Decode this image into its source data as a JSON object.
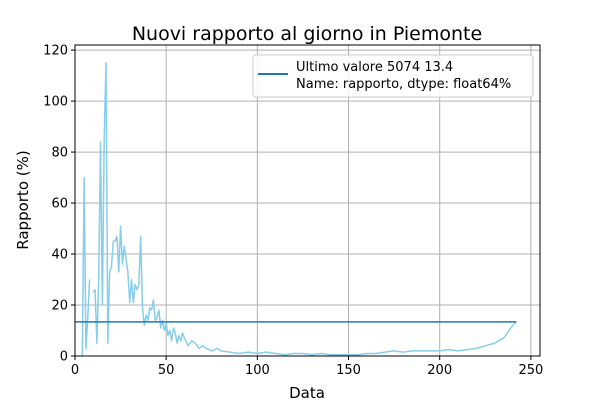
{
  "chart_data": {
    "type": "line",
    "title": "Nuovi rapporto al giorno in Piemonte",
    "xlabel": "Data",
    "ylabel": "Rapporto (%)",
    "xlim": [
      0,
      255
    ],
    "ylim": [
      0,
      122
    ],
    "xticks": [
      0,
      50,
      100,
      150,
      200,
      250
    ],
    "yticks": [
      0,
      20,
      40,
      60,
      80,
      100,
      120
    ],
    "grid": true,
    "legend_position": "top-right",
    "legend": {
      "line1": "Ultimo valore 5074    13.4",
      "line2": "Name: rapporto, dtype: float64%"
    },
    "series": [
      {
        "role": "data",
        "color": "#87ceeb",
        "x": [
          0,
          1,
          2,
          3,
          4,
          5,
          6,
          7,
          8,
          9,
          10,
          11,
          12,
          13,
          14,
          15,
          16,
          17,
          18,
          19,
          20,
          21,
          22,
          23,
          24,
          25,
          26,
          27,
          28,
          29,
          30,
          31,
          32,
          33,
          34,
          35,
          36,
          37,
          38,
          39,
          40,
          41,
          42,
          43,
          44,
          45,
          46,
          47,
          48,
          49,
          50,
          51,
          52,
          53,
          54,
          55,
          56,
          57,
          58,
          59,
          60,
          62,
          64,
          66,
          68,
          70,
          72,
          75,
          78,
          80,
          85,
          90,
          95,
          100,
          105,
          110,
          115,
          120,
          125,
          130,
          135,
          140,
          145,
          150,
          155,
          160,
          165,
          170,
          175,
          180,
          185,
          190,
          195,
          200,
          205,
          210,
          215,
          220,
          225,
          230,
          235,
          238,
          240,
          242
        ],
        "y": [
          null,
          null,
          null,
          null,
          0,
          70,
          3,
          15,
          30,
          null,
          25,
          26,
          5,
          30,
          84,
          20,
          85,
          115,
          5,
          33,
          35,
          45,
          45,
          47,
          33,
          51,
          36,
          43,
          38,
          33,
          21,
          30,
          21,
          28,
          26,
          28,
          47,
          19,
          12,
          16,
          14,
          19,
          18,
          22,
          14,
          15,
          18,
          11,
          14,
          10,
          13,
          8,
          10,
          6,
          11,
          9,
          5,
          8,
          6,
          9,
          7,
          4,
          6,
          5,
          3,
          4,
          3,
          2,
          3,
          2,
          1.5,
          1,
          1.5,
          1,
          1.5,
          1,
          0.5,
          1,
          1,
          0.5,
          1,
          0.5,
          0.5,
          0.5,
          0.5,
          1,
          1,
          1.5,
          2,
          1.5,
          2,
          2,
          2,
          2,
          2.5,
          2,
          2.5,
          3,
          4,
          5,
          7,
          10,
          12,
          13.4
        ]
      },
      {
        "role": "last-value",
        "color": "#1f77b4",
        "x": [
          0,
          242
        ],
        "y": [
          13.4,
          13.4
        ]
      }
    ]
  }
}
